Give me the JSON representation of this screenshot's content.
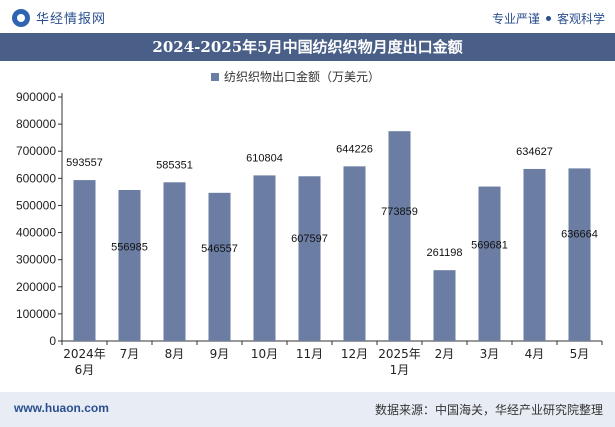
{
  "header": {
    "brand_name": "华经情报网",
    "tag_left": "专业严谨",
    "tag_right": "客观科学"
  },
  "title": "2024-2025年5月中国纺织织物月度出口金额",
  "footer": {
    "website": "www.huaon.com",
    "source": "数据来源：中国海关，华经产业研究院整理"
  },
  "colors": {
    "bar": "#6b7da3",
    "title_bg": "#4a5f87",
    "accent": "#2a4f8f"
  },
  "chart_data": {
    "type": "bar",
    "categories": [
      "2024年6月",
      "7月",
      "8月",
      "9月",
      "10月",
      "11月",
      "12月",
      "2025年1月",
      "2月",
      "3月",
      "4月",
      "5月"
    ],
    "series": [
      {
        "name": "纺织织物出口金额（万美元）",
        "values": [
          593557,
          556985,
          585351,
          546557,
          610804,
          607597,
          644226,
          773859,
          261198,
          569681,
          634627,
          636664
        ]
      }
    ],
    "ylim": [
      0,
      900000
    ],
    "yticks": [
      0,
      100000,
      200000,
      300000,
      400000,
      500000,
      600000,
      700000,
      800000,
      900000
    ],
    "legend_position": "top-center",
    "grid": false
  }
}
